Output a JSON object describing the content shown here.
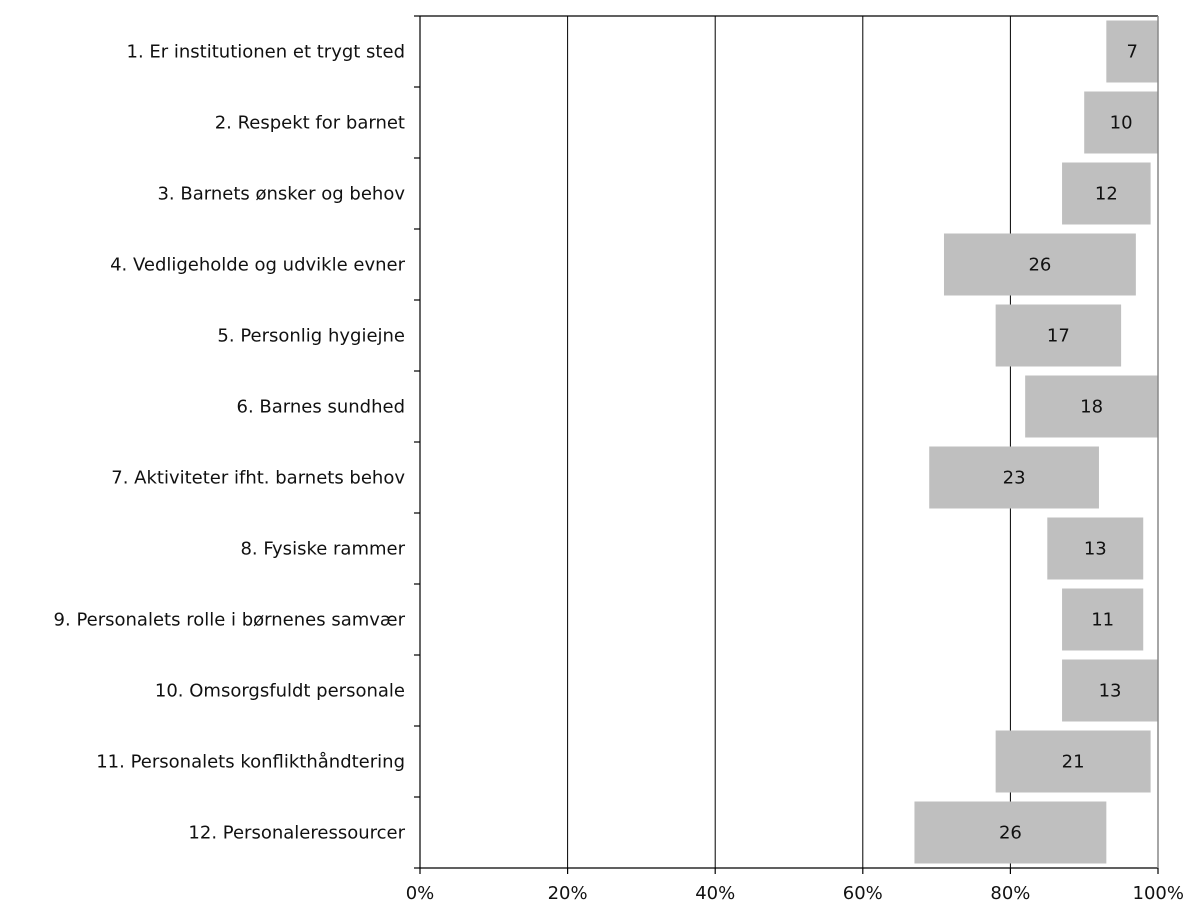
{
  "chart_data": {
    "type": "bar",
    "orientation": "horizontal",
    "stacked_range": true,
    "categories": [
      "1. Er institutionen et trygt sted",
      "2. Respekt for barnet",
      "3. Barnets ønsker og behov",
      "4. Vedligeholde og udvikle evner",
      "5. Personlig hygiejne",
      "6. Barnes sundhed",
      "7. Aktiviteter ifht. barnets behov",
      "8. Fysiske rammer",
      "9. Personalets rolle i børnenes samvær",
      "10. Omsorgsfuldt personale",
      "11. Personalets konflikthåndtering",
      "12. Personaleressourcer"
    ],
    "series": [
      {
        "start": [
          93,
          90,
          87,
          71,
          78,
          82,
          69,
          85,
          87,
          87,
          78,
          67
        ],
        "end": [
          100,
          100,
          99,
          97,
          95,
          100,
          92,
          98,
          98,
          100,
          99,
          93
        ],
        "labels": [
          "7",
          "10",
          "12",
          "26",
          "17",
          "18",
          "23",
          "13",
          "11",
          "13",
          "21",
          "26"
        ]
      }
    ],
    "xlim": [
      0,
      100
    ],
    "xticks": [
      "0%",
      "20%",
      "40%",
      "60%",
      "80%",
      "100%"
    ],
    "grid": true,
    "bar_color": "#bfbfbf",
    "title": "",
    "xlabel": "",
    "ylabel": ""
  }
}
